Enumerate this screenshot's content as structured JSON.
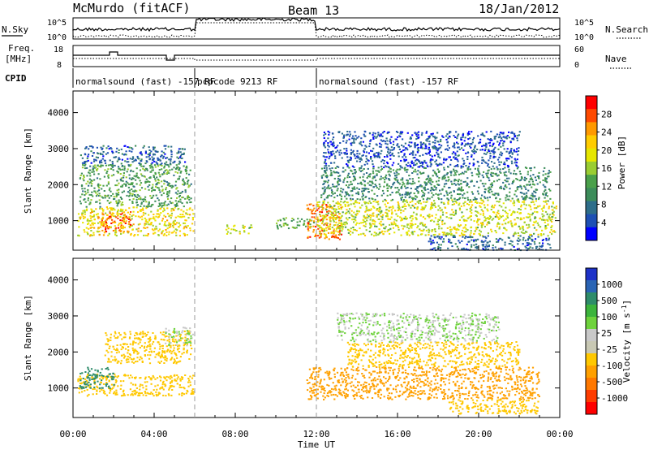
{
  "header": {
    "station": "McMurdo (fitACF)",
    "beam": "Beam 13",
    "date": "18/Jan/2012"
  },
  "strips": {
    "nsky_label": "N.Sky",
    "nsearch_label": "N.Search",
    "freq_label_1": "Freq.",
    "freq_label_2": "[MHz]",
    "nave_label": "Nave",
    "cpid_label": "CPID",
    "noise_ticks_left": [
      "10^5",
      "10^0"
    ],
    "noise_ticks_right": [
      "10^5",
      "10^0"
    ],
    "freq_ticks": [
      "18",
      "8"
    ],
    "nave_ticks": [
      "60",
      "0"
    ],
    "cpid_segments": [
      {
        "label": "normalsound (fast) -157 RF",
        "start_h": 0,
        "end_h": 6
      },
      {
        "label": "pcpcode 9213 RF",
        "start_h": 6,
        "end_h": 12
      },
      {
        "label": "normalsound (fast) -157 RF",
        "start_h": 12,
        "end_h": 24
      }
    ]
  },
  "panels": {
    "power": {
      "ylabel": "Slant Range [km]",
      "cbar_title": "Power [dB]",
      "cbar_levels": [
        "28",
        "24",
        "20",
        "16",
        "12",
        "8",
        "4"
      ],
      "cbar_colors": [
        "#ff0000",
        "#ff4a00",
        "#ff9900",
        "#ffcc00",
        "#e6e600",
        "#9acd32",
        "#4aa04a",
        "#3c8c5a",
        "#2e6e8a",
        "#1e50b4",
        "#0000ff"
      ]
    },
    "velocity": {
      "ylabel": "Slant Range [km]",
      "cbar_title": "Velocity [m s",
      "cbar_sup": "-1",
      "cbar_title_end": "]",
      "cbar_levels": [
        "1000",
        "500",
        "100",
        "25",
        "-25",
        "-100",
        "-500",
        "-1000"
      ],
      "cbar_colors": [
        "#1e32c8",
        "#2a64b4",
        "#2e8c6a",
        "#3cb43c",
        "#6ed23c",
        "#c8c8c8",
        "#c8c8b4",
        "#ffc800",
        "#ffa000",
        "#ff7800",
        "#ff3c00",
        "#ff0000"
      ]
    }
  },
  "chart_data": {
    "type": "heatmap",
    "x_axis": {
      "label": "Time UT",
      "ticks": [
        "00:00",
        "04:00",
        "08:00",
        "12:00",
        "16:00",
        "20:00",
        "00:00"
      ],
      "range_h": [
        0,
        24
      ]
    },
    "y_axis": {
      "range_km": [
        180,
        4600
      ],
      "ticks": [
        1000,
        2000,
        3000,
        4000
      ],
      "tick_labels": [
        "1000",
        "2000",
        "3000",
        "4000"
      ]
    },
    "mode_change_times_h": [
      6,
      12
    ],
    "power_regions": [
      {
        "t0": 0.2,
        "t1": 5.9,
        "r0": 600,
        "r1": 1400,
        "level": 20
      },
      {
        "t0": 0.3,
        "t1": 5.8,
        "r0": 1400,
        "r1": 2600,
        "level": 12
      },
      {
        "t0": 0.3,
        "t1": 5.5,
        "r0": 2600,
        "r1": 3100,
        "level": 6
      },
      {
        "t0": 1.2,
        "t1": 2.8,
        "r0": 700,
        "r1": 1300,
        "level": 26
      },
      {
        "t0": 7.5,
        "t1": 8.8,
        "r0": 650,
        "r1": 900,
        "level": 18
      },
      {
        "t0": 10.0,
        "t1": 11.9,
        "r0": 800,
        "r1": 1100,
        "level": 14
      },
      {
        "t0": 11.5,
        "t1": 13.2,
        "r0": 500,
        "r1": 1500,
        "level": 26
      },
      {
        "t0": 12.0,
        "t1": 23.8,
        "r0": 600,
        "r1": 1600,
        "level": 18
      },
      {
        "t0": 12.2,
        "t1": 23.5,
        "r0": 1600,
        "r1": 2500,
        "level": 10
      },
      {
        "t0": 12.3,
        "t1": 22.0,
        "r0": 2500,
        "r1": 3500,
        "level": 5
      },
      {
        "t0": 17.5,
        "t1": 23.5,
        "r0": 200,
        "r1": 600,
        "level": 6
      }
    ],
    "velocity_regions": [
      {
        "t0": 0.2,
        "t1": 5.9,
        "r0": 800,
        "r1": 1400,
        "level": -100
      },
      {
        "t0": 0.3,
        "t1": 2.0,
        "r0": 1000,
        "r1": 1600,
        "level": 100
      },
      {
        "t0": 1.5,
        "t1": 5.8,
        "r0": 1700,
        "r1": 2600,
        "level": -100
      },
      {
        "t0": 4.5,
        "t1": 5.9,
        "r0": 2200,
        "r1": 2700,
        "level": 0
      },
      {
        "t0": 11.5,
        "t1": 23.0,
        "r0": 700,
        "r1": 1600,
        "level": -200
      },
      {
        "t0": 13.5,
        "t1": 22.0,
        "r0": 1600,
        "r1": 2300,
        "level": -100
      },
      {
        "t0": 13.0,
        "t1": 21.0,
        "r0": 2300,
        "r1": 3100,
        "level": 0
      },
      {
        "t0": 18.5,
        "t1": 23.0,
        "r0": 300,
        "r1": 700,
        "level": -100
      }
    ]
  }
}
